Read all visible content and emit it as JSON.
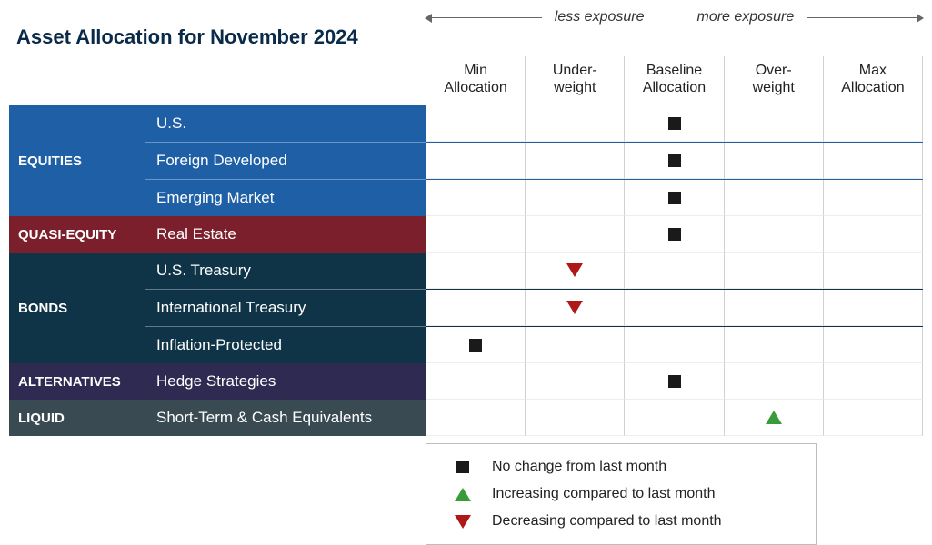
{
  "title": "Asset Allocation for November 2024",
  "exposure": {
    "less": "less exposure",
    "more": "more exposure"
  },
  "columns": [
    "Min\nAllocation",
    "Under-\nweight",
    "Baseline\nAllocation",
    "Over-\nweight",
    "Max\nAllocation"
  ],
  "colors": {
    "title": "#0a2a4a",
    "text": "#1a1a1a",
    "equities": "#1e5fa6",
    "quasi_equity": "#7a1f2b",
    "bonds": "#0f3447",
    "alternatives": "#2e2a52",
    "liquid": "#3a4a52",
    "square": "#1a1a1a",
    "up": "#3a9b3a",
    "down": "#b01717",
    "cell_border": "#d0d0d0"
  },
  "groups": [
    {
      "key": "equities",
      "label": "EQUITIES",
      "bg": "#1e5fa6",
      "rows": [
        {
          "label": "U.S.",
          "col": 2,
          "marker": "square"
        },
        {
          "label": "Foreign Developed",
          "col": 2,
          "marker": "square"
        },
        {
          "label": "Emerging Market",
          "col": 2,
          "marker": "square"
        }
      ]
    },
    {
      "key": "quasi",
      "label": "QUASI-EQUITY",
      "bg": "#7a1f2b",
      "rows": [
        {
          "label": "Real Estate",
          "col": 2,
          "marker": "square"
        }
      ]
    },
    {
      "key": "bonds",
      "label": "BONDS",
      "bg": "#0f3447",
      "rows": [
        {
          "label": "U.S. Treasury",
          "col": 1,
          "marker": "down"
        },
        {
          "label": "International Treasury",
          "col": 1,
          "marker": "down"
        },
        {
          "label": "Inflation-Protected",
          "col": 0,
          "marker": "square"
        }
      ]
    },
    {
      "key": "alternatives",
      "label": "ALTERNATIVES",
      "bg": "#2e2a52",
      "rows": [
        {
          "label": "Hedge Strategies",
          "col": 2,
          "marker": "square"
        }
      ]
    },
    {
      "key": "liquid",
      "label": "LIQUID",
      "bg": "#3a4a52",
      "rows": [
        {
          "label": "Short-Term & Cash Equivalents",
          "col": 3,
          "marker": "up"
        }
      ]
    }
  ],
  "legend": [
    {
      "marker": "square",
      "text": "No change from last month"
    },
    {
      "marker": "up",
      "text": "Increasing compared to last month"
    },
    {
      "marker": "down",
      "text": "Decreasing compared to last month"
    }
  ]
}
